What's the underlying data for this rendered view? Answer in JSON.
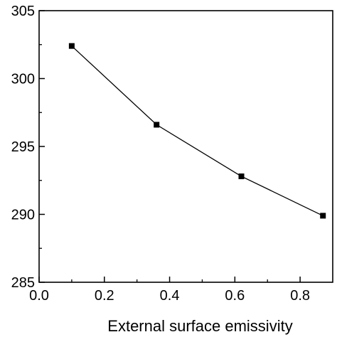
{
  "chart_data": {
    "type": "line",
    "title": "",
    "xlabel": "External surface emissivity",
    "ylabel": "",
    "xlim": [
      0.0,
      0.9
    ],
    "ylim": [
      285,
      305
    ],
    "x_ticks": [
      0.0,
      0.2,
      0.4,
      0.6,
      0.8
    ],
    "x_tick_labels": [
      "0.0",
      "0.2",
      "0.4",
      "0.6",
      "0.8"
    ],
    "y_ticks": [
      285,
      290,
      295,
      300,
      305
    ],
    "y_tick_labels": [
      "285",
      "290",
      "295",
      "300",
      "305"
    ],
    "grid": false,
    "legend": "none",
    "series": [
      {
        "x": [
          0.1,
          0.36,
          0.62,
          0.87
        ],
        "y": [
          302.4,
          296.6,
          292.8,
          289.9
        ],
        "marker": "square",
        "color": "#000000"
      }
    ]
  }
}
